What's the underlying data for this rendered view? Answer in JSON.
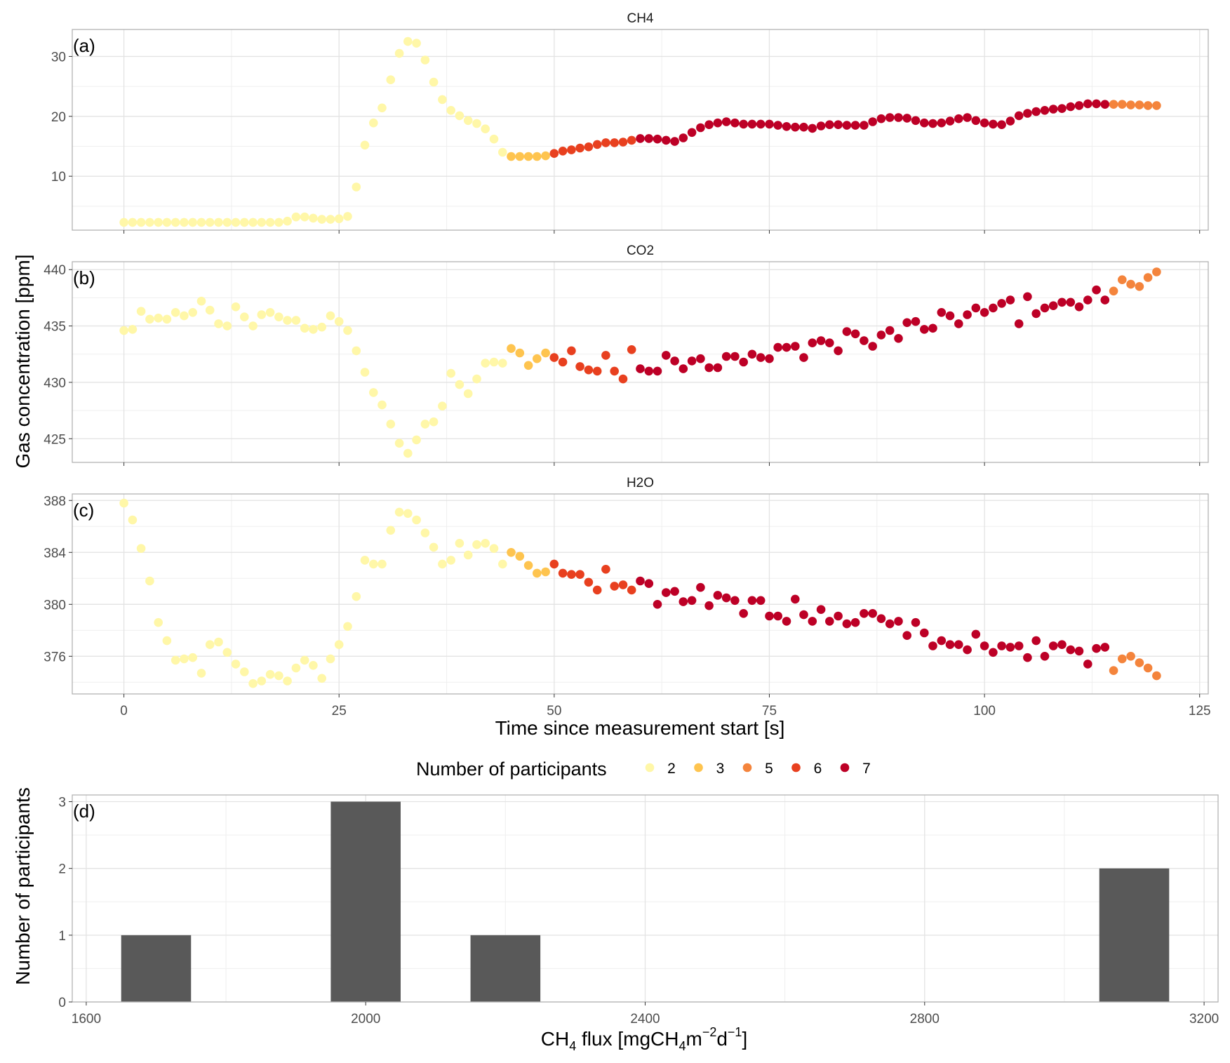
{
  "chart_data": [
    {
      "type": "scatter",
      "panel_label": "(a)",
      "title": "CH4",
      "ylim": [
        1,
        34.5
      ],
      "yticks": [
        10,
        20,
        30
      ],
      "xlim": [
        -6,
        126
      ],
      "xticks": [
        0,
        25,
        50,
        75,
        100,
        125
      ],
      "grid": true,
      "x": [
        0,
        1,
        2,
        3,
        4,
        5,
        6,
        7,
        8,
        9,
        10,
        11,
        12,
        13,
        14,
        15,
        16,
        17,
        18,
        19,
        20,
        21,
        22,
        23,
        24,
        25,
        26,
        27,
        28,
        29,
        30,
        31,
        32,
        33,
        34,
        35,
        36,
        37,
        38,
        39,
        40,
        41,
        42,
        43,
        44,
        45,
        46,
        47,
        48,
        49,
        50,
        51,
        52,
        53,
        54,
        55,
        56,
        57,
        58,
        59,
        60,
        61,
        62,
        63,
        64,
        65,
        66,
        67,
        68,
        69,
        70,
        71,
        72,
        73,
        74,
        75,
        76,
        77,
        78,
        79,
        80,
        81,
        82,
        83,
        84,
        85,
        86,
        87,
        88,
        89,
        90,
        91,
        92,
        93,
        94,
        95,
        96,
        97,
        98,
        99,
        100,
        101,
        102,
        103,
        104,
        105,
        106,
        107,
        108,
        109,
        110,
        111,
        112,
        113,
        114,
        115,
        116,
        117,
        118,
        119,
        120
      ],
      "y": [
        2.3,
        2.3,
        2.3,
        2.3,
        2.3,
        2.3,
        2.3,
        2.3,
        2.3,
        2.3,
        2.3,
        2.3,
        2.3,
        2.3,
        2.3,
        2.3,
        2.3,
        2.3,
        2.3,
        2.5,
        3.2,
        3.2,
        3.0,
        2.8,
        2.8,
        2.9,
        3.3,
        8.2,
        15.2,
        18.9,
        21.4,
        26.1,
        30.5,
        32.5,
        32.2,
        29.4,
        25.7,
        22.8,
        21.0,
        20.1,
        19.3,
        18.8,
        17.9,
        16.2,
        14.0,
        13.3,
        13.3,
        13.3,
        13.3,
        13.4,
        13.8,
        14.2,
        14.4,
        14.7,
        14.9,
        15.3,
        15.6,
        15.6,
        15.7,
        16.0,
        16.3,
        16.3,
        16.2,
        16.0,
        15.8,
        16.4,
        17.3,
        18.1,
        18.6,
        18.9,
        19.1,
        18.9,
        18.7,
        18.7,
        18.7,
        18.7,
        18.5,
        18.3,
        18.2,
        18.2,
        18.0,
        18.4,
        18.6,
        18.6,
        18.5,
        18.5,
        18.5,
        19.1,
        19.6,
        19.8,
        19.8,
        19.7,
        19.3,
        18.9,
        18.8,
        18.9,
        19.2,
        19.6,
        19.8,
        19.3,
        18.9,
        18.7,
        18.6,
        19.2,
        20.1,
        20.5,
        20.8,
        21.0,
        21.2,
        21.3,
        21.6,
        21.8,
        22.1,
        22.1,
        22.0,
        22.0,
        22.0,
        21.9,
        21.9,
        21.8,
        21.8
      ],
      "participants": [
        2,
        2,
        2,
        2,
        2,
        2,
        2,
        2,
        2,
        2,
        2,
        2,
        2,
        2,
        2,
        2,
        2,
        2,
        2,
        2,
        2,
        2,
        2,
        2,
        2,
        2,
        2,
        2,
        2,
        2,
        2,
        2,
        2,
        2,
        2,
        2,
        2,
        2,
        2,
        2,
        2,
        2,
        2,
        2,
        2,
        3,
        3,
        3,
        3,
        3,
        6,
        6,
        6,
        6,
        6,
        6,
        6,
        6,
        6,
        6,
        7,
        7,
        7,
        7,
        7,
        7,
        7,
        7,
        7,
        7,
        7,
        7,
        7,
        7,
        7,
        7,
        7,
        7,
        7,
        7,
        7,
        7,
        7,
        7,
        7,
        7,
        7,
        7,
        7,
        7,
        7,
        7,
        7,
        7,
        7,
        7,
        7,
        7,
        7,
        7,
        7,
        7,
        7,
        7,
        7,
        7,
        7,
        7,
        7,
        7,
        7,
        7,
        7,
        7,
        7,
        5,
        5,
        5,
        5,
        5,
        5
      ]
    },
    {
      "type": "scatter",
      "panel_label": "(b)",
      "title": "CO2",
      "ylim": [
        422.9,
        440.7
      ],
      "yticks": [
        425,
        430,
        435,
        440
      ],
      "xlim": [
        -6,
        126
      ],
      "xticks": [
        0,
        25,
        50,
        75,
        100,
        125
      ],
      "grid": true,
      "x": [
        0,
        1,
        2,
        3,
        4,
        5,
        6,
        7,
        8,
        9,
        10,
        11,
        12,
        13,
        14,
        15,
        16,
        17,
        18,
        19,
        20,
        21,
        22,
        23,
        24,
        25,
        26,
        27,
        28,
        29,
        30,
        31,
        32,
        33,
        34,
        35,
        36,
        37,
        38,
        39,
        40,
        41,
        42,
        43,
        44,
        45,
        46,
        47,
        48,
        49,
        50,
        51,
        52,
        53,
        54,
        55,
        56,
        57,
        58,
        59,
        60,
        61,
        62,
        63,
        64,
        65,
        66,
        67,
        68,
        69,
        70,
        71,
        72,
        73,
        74,
        75,
        76,
        77,
        78,
        79,
        80,
        81,
        82,
        83,
        84,
        85,
        86,
        87,
        88,
        89,
        90,
        91,
        92,
        93,
        94,
        95,
        96,
        97,
        98,
        99,
        100,
        101,
        102,
        103,
        104,
        105,
        106,
        107,
        108,
        109,
        110,
        111,
        112,
        113,
        114,
        115,
        116,
        117,
        118,
        119,
        120
      ],
      "y": [
        434.6,
        434.7,
        436.3,
        435.6,
        435.7,
        435.6,
        436.2,
        435.9,
        436.2,
        437.2,
        436.4,
        435.2,
        435.0,
        436.7,
        435.8,
        435.0,
        436.0,
        436.2,
        435.8,
        435.5,
        435.5,
        434.8,
        434.7,
        434.9,
        435.9,
        435.4,
        434.6,
        432.8,
        430.9,
        429.1,
        428.0,
        426.3,
        424.6,
        423.7,
        424.9,
        426.3,
        426.5,
        427.9,
        430.8,
        429.8,
        429.0,
        430.3,
        431.7,
        431.8,
        431.7,
        433.0,
        432.6,
        431.5,
        432.1,
        432.6,
        432.2,
        431.8,
        432.8,
        431.4,
        431.1,
        431.0,
        432.4,
        431.0,
        430.3,
        432.9,
        431.2,
        431.0,
        431.0,
        432.4,
        431.9,
        431.2,
        431.9,
        432.1,
        431.3,
        431.3,
        432.3,
        432.3,
        431.8,
        432.5,
        432.2,
        432.1,
        433.1,
        433.1,
        433.2,
        432.2,
        433.5,
        433.7,
        433.5,
        432.8,
        434.5,
        434.3,
        433.7,
        433.2,
        434.2,
        434.6,
        433.9,
        435.3,
        435.4,
        434.7,
        434.8,
        436.2,
        435.9,
        435.2,
        436.0,
        436.6,
        436.2,
        436.6,
        437.0,
        437.3,
        435.2,
        437.6,
        436.1,
        436.6,
        436.8,
        437.1,
        437.1,
        436.7,
        437.3,
        438.2,
        437.3,
        438.1,
        439.1,
        438.7,
        438.5,
        439.3,
        439.8
      ],
      "participants": [
        2,
        2,
        2,
        2,
        2,
        2,
        2,
        2,
        2,
        2,
        2,
        2,
        2,
        2,
        2,
        2,
        2,
        2,
        2,
        2,
        2,
        2,
        2,
        2,
        2,
        2,
        2,
        2,
        2,
        2,
        2,
        2,
        2,
        2,
        2,
        2,
        2,
        2,
        2,
        2,
        2,
        2,
        2,
        2,
        2,
        3,
        3,
        3,
        3,
        3,
        6,
        6,
        6,
        6,
        6,
        6,
        6,
        6,
        6,
        6,
        7,
        7,
        7,
        7,
        7,
        7,
        7,
        7,
        7,
        7,
        7,
        7,
        7,
        7,
        7,
        7,
        7,
        7,
        7,
        7,
        7,
        7,
        7,
        7,
        7,
        7,
        7,
        7,
        7,
        7,
        7,
        7,
        7,
        7,
        7,
        7,
        7,
        7,
        7,
        7,
        7,
        7,
        7,
        7,
        7,
        7,
        7,
        7,
        7,
        7,
        7,
        7,
        7,
        7,
        7,
        5,
        5,
        5,
        5,
        5,
        5
      ]
    },
    {
      "type": "scatter",
      "panel_label": "(c)",
      "title": "H2O",
      "ylim": [
        373.1,
        388.5
      ],
      "yticks": [
        376,
        380,
        384,
        388
      ],
      "xlim": [
        -6,
        126
      ],
      "xticks": [
        0,
        25,
        50,
        75,
        100,
        125
      ],
      "grid": true,
      "x": [
        0,
        1,
        2,
        3,
        4,
        5,
        6,
        7,
        8,
        9,
        10,
        11,
        12,
        13,
        14,
        15,
        16,
        17,
        18,
        19,
        20,
        21,
        22,
        23,
        24,
        25,
        26,
        27,
        28,
        29,
        30,
        31,
        32,
        33,
        34,
        35,
        36,
        37,
        38,
        39,
        40,
        41,
        42,
        43,
        44,
        45,
        46,
        47,
        48,
        49,
        50,
        51,
        52,
        53,
        54,
        55,
        56,
        57,
        58,
        59,
        60,
        61,
        62,
        63,
        64,
        65,
        66,
        67,
        68,
        69,
        70,
        71,
        72,
        73,
        74,
        75,
        76,
        77,
        78,
        79,
        80,
        81,
        82,
        83,
        84,
        85,
        86,
        87,
        88,
        89,
        90,
        91,
        92,
        93,
        94,
        95,
        96,
        97,
        98,
        99,
        100,
        101,
        102,
        103,
        104,
        105,
        106,
        107,
        108,
        109,
        110,
        111,
        112,
        113,
        114,
        115,
        116,
        117,
        118,
        119,
        120
      ],
      "y": [
        387.8,
        386.5,
        384.3,
        381.8,
        378.6,
        377.2,
        375.7,
        375.8,
        375.9,
        374.7,
        376.9,
        377.1,
        376.3,
        375.4,
        374.8,
        373.9,
        374.1,
        374.6,
        374.5,
        374.1,
        375.1,
        375.7,
        375.3,
        374.3,
        375.8,
        376.9,
        378.3,
        380.6,
        383.4,
        383.1,
        383.1,
        385.7,
        387.1,
        387.0,
        386.5,
        385.5,
        384.4,
        383.1,
        383.4,
        384.7,
        383.8,
        384.6,
        384.7,
        384.3,
        383.1,
        384.0,
        383.7,
        383.0,
        382.4,
        382.5,
        383.1,
        382.4,
        382.3,
        382.3,
        381.7,
        381.1,
        382.7,
        381.4,
        381.5,
        381.1,
        381.8,
        381.6,
        380.0,
        380.9,
        381.0,
        380.2,
        380.3,
        381.3,
        379.9,
        380.7,
        380.5,
        380.3,
        379.3,
        380.3,
        380.3,
        379.1,
        379.1,
        378.7,
        380.4,
        379.2,
        378.7,
        379.6,
        378.7,
        379.1,
        378.5,
        378.6,
        379.3,
        379.3,
        378.9,
        378.5,
        378.7,
        377.6,
        378.6,
        377.8,
        376.8,
        377.2,
        376.9,
        376.9,
        376.5,
        377.7,
        376.8,
        376.3,
        376.8,
        376.7,
        376.8,
        375.9,
        377.2,
        376.0,
        376.8,
        376.9,
        376.5,
        376.4,
        375.4,
        376.6,
        376.7,
        374.9,
        375.8,
        376.0,
        375.5,
        375.1,
        374.5
      ],
      "participants": [
        2,
        2,
        2,
        2,
        2,
        2,
        2,
        2,
        2,
        2,
        2,
        2,
        2,
        2,
        2,
        2,
        2,
        2,
        2,
        2,
        2,
        2,
        2,
        2,
        2,
        2,
        2,
        2,
        2,
        2,
        2,
        2,
        2,
        2,
        2,
        2,
        2,
        2,
        2,
        2,
        2,
        2,
        2,
        2,
        2,
        3,
        3,
        3,
        3,
        3,
        6,
        6,
        6,
        6,
        6,
        6,
        6,
        6,
        6,
        6,
        7,
        7,
        7,
        7,
        7,
        7,
        7,
        7,
        7,
        7,
        7,
        7,
        7,
        7,
        7,
        7,
        7,
        7,
        7,
        7,
        7,
        7,
        7,
        7,
        7,
        7,
        7,
        7,
        7,
        7,
        7,
        7,
        7,
        7,
        7,
        7,
        7,
        7,
        7,
        7,
        7,
        7,
        7,
        7,
        7,
        7,
        7,
        7,
        7,
        7,
        7,
        7,
        7,
        7,
        7,
        5,
        5,
        5,
        5,
        5,
        5
      ]
    },
    {
      "type": "bar",
      "panel_label": "(d)",
      "xlabel": "CH4 flux [mgCH4m-2d-1]",
      "ylabel": "Number of participants",
      "xlim": [
        1580,
        3220
      ],
      "xticks": [
        1600,
        2000,
        2400,
        2800,
        3200
      ],
      "ylim": [
        0,
        3.1
      ],
      "yticks": [
        0,
        1,
        2,
        3
      ],
      "bin_width": 100,
      "bins": [
        {
          "center": 1700,
          "count": 1
        },
        {
          "center": 2000,
          "count": 3
        },
        {
          "center": 2200,
          "count": 1
        },
        {
          "center": 3100,
          "count": 2
        }
      ],
      "bar_color": "#595959",
      "grid": true
    }
  ],
  "shared": {
    "ylabel_top": "Gas concentration [ppm]",
    "xlabel_top": "Time since measurement start [s]"
  },
  "legend": {
    "title": "Number of participants",
    "placement": "between panels (c) and (d)",
    "items": [
      {
        "label": "2",
        "color": "#FFF7A8"
      },
      {
        "label": "3",
        "color": "#FEC44F"
      },
      {
        "label": "5",
        "color": "#F4843C"
      },
      {
        "label": "6",
        "color": "#E8401F"
      },
      {
        "label": "7",
        "color": "#BD0026"
      }
    ]
  },
  "colors": {
    "panel_border": "#b3b3b3",
    "grid_major": "#e3e3e3",
    "grid_minor": "#efefef",
    "tick_text": "#4d4d4d"
  }
}
